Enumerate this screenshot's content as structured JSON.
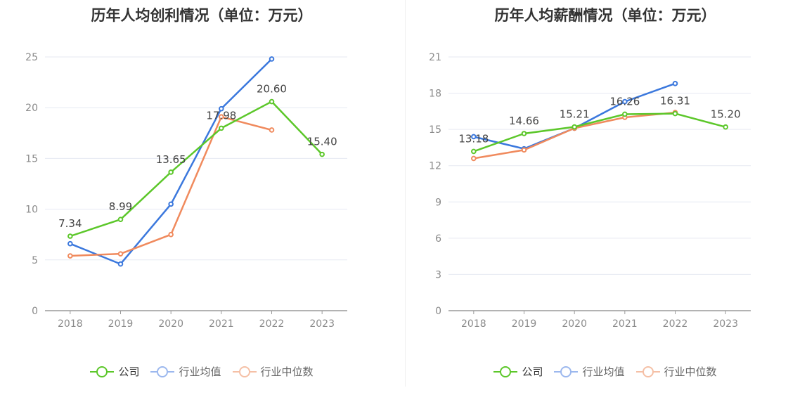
{
  "legend": [
    {
      "name": "公司",
      "color": "#5cc72a"
    },
    {
      "name": "行业均值",
      "color": "#3b78dd"
    },
    {
      "name": "行业中位数",
      "color": "#f08a5d"
    }
  ],
  "legend_inactive_colors": {
    "行业均值": "#9cb8ee",
    "行业中位数": "#f5c0a6"
  },
  "chart_data": [
    {
      "type": "line",
      "title": "历年人均创利情况（单位：万元）",
      "categories": [
        "2018",
        "2019",
        "2020",
        "2021",
        "2022",
        "2023"
      ],
      "ylim": [
        0,
        25
      ],
      "yticks": [
        0,
        5,
        10,
        15,
        20,
        25
      ],
      "grid": true,
      "legend_position": "bottom",
      "series": [
        {
          "name": "公司",
          "color": "#5cc72a",
          "values": [
            7.34,
            8.99,
            13.65,
            17.98,
            20.6,
            15.4
          ],
          "labels": [
            "7.34",
            "8.99",
            "13.65",
            "17.98",
            "20.60",
            "15.40"
          ]
        },
        {
          "name": "行业均值",
          "color": "#3b78dd",
          "values": [
            6.6,
            4.6,
            10.5,
            19.9,
            24.8,
            null
          ]
        },
        {
          "name": "行业中位数",
          "color": "#f08a5d",
          "values": [
            5.4,
            5.6,
            7.5,
            19.1,
            17.8,
            null
          ]
        }
      ]
    },
    {
      "type": "line",
      "title": "历年人均薪酬情况（单位：万元）",
      "categories": [
        "2018",
        "2019",
        "2020",
        "2021",
        "2022",
        "2023"
      ],
      "ylim": [
        0,
        21
      ],
      "yticks": [
        0,
        3,
        6,
        9,
        12,
        15,
        18,
        21
      ],
      "grid": true,
      "legend_position": "bottom",
      "series": [
        {
          "name": "公司",
          "color": "#5cc72a",
          "values": [
            13.18,
            14.66,
            15.21,
            16.26,
            16.31,
            15.2
          ],
          "labels": [
            "13.18",
            "14.66",
            "15.21",
            "16.26",
            "16.31",
            "15.20"
          ]
        },
        {
          "name": "行业均值",
          "color": "#3b78dd",
          "values": [
            14.4,
            13.4,
            15.1,
            17.3,
            18.8,
            null
          ]
        },
        {
          "name": "行业中位数",
          "color": "#f08a5d",
          "values": [
            12.6,
            13.3,
            15.1,
            16.0,
            16.4,
            null
          ]
        }
      ]
    }
  ]
}
